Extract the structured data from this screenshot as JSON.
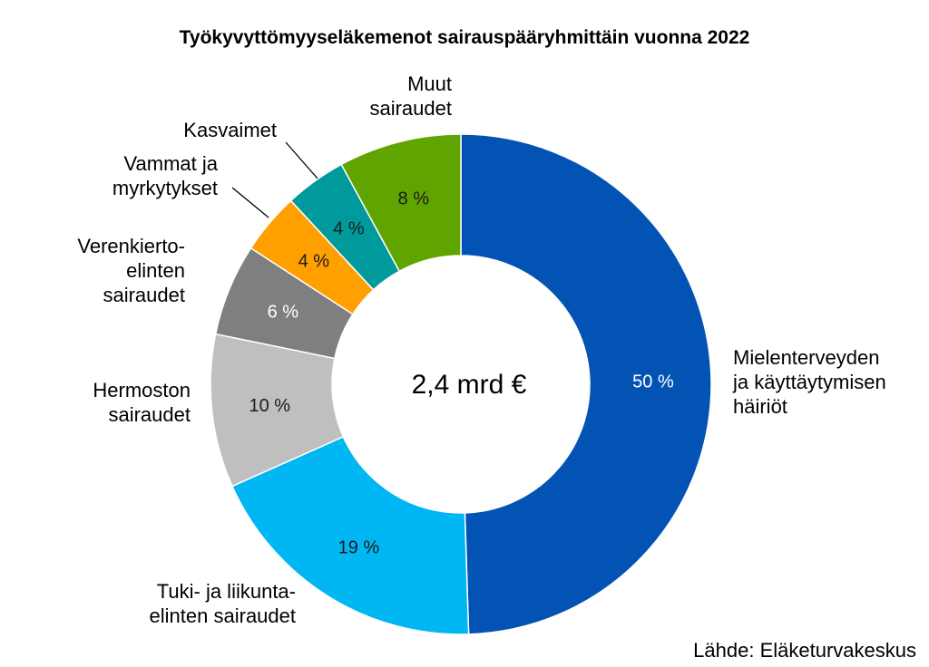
{
  "chart_data": {
    "type": "pie",
    "style": "donut",
    "title": "Työkyvyttömyyseläkemenot sairauspääryhmittäin vuonna 2022",
    "center_label": "2,4 mrd €",
    "source": "Lähde: Eläketurvakeskus",
    "slices": [
      {
        "label_lines": [
          "Mielenterveyden",
          "ja käyttäytymisen",
          "häiriöt"
        ],
        "value": 50,
        "value_label": "50 %",
        "color": "#0353b4",
        "text_color": "#ffffff"
      },
      {
        "label_lines": [
          "Tuki- ja liikunta-",
          "elinten sairaudet"
        ],
        "value": 19,
        "value_label": "19 %",
        "color": "#00b7f4",
        "text_color": "#1a1a1a"
      },
      {
        "label_lines": [
          "Hermoston",
          "sairaudet"
        ],
        "value": 10,
        "value_label": "10 %",
        "color": "#bfbfbf",
        "text_color": "#1a1a1a"
      },
      {
        "label_lines": [
          "Verenkierto-",
          "elinten",
          "sairaudet"
        ],
        "value": 6,
        "value_label": "6 %",
        "color": "#7f7f7f",
        "text_color": "#ffffff"
      },
      {
        "label_lines": [
          "Vammat ja",
          "myrkytykset"
        ],
        "value": 4,
        "value_label": "4 %",
        "color": "#ffa000",
        "text_color": "#1a1a1a"
      },
      {
        "label_lines": [
          "Kasvaimet"
        ],
        "value": 4,
        "value_label": "4 %",
        "color": "#00999c",
        "text_color": "#1a1a1a"
      },
      {
        "label_lines": [
          "Muut",
          "sairaudet"
        ],
        "value": 8,
        "value_label": "8 %",
        "color": "#60a400",
        "text_color": "#1a1a1a"
      }
    ]
  }
}
